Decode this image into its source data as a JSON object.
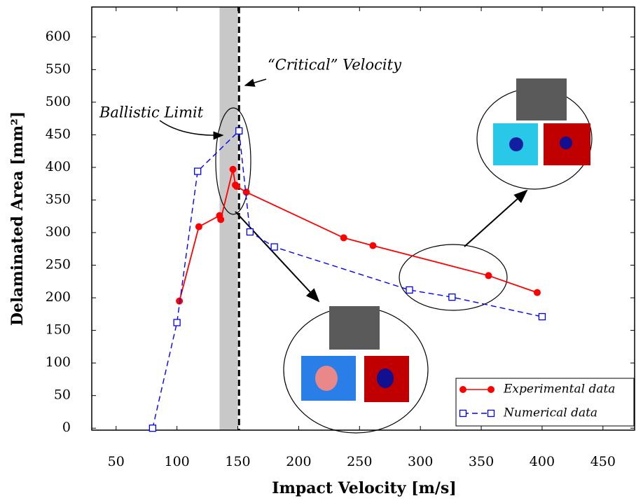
{
  "chart_data": {
    "type": "line",
    "xlabel": "Impact Velocity [m/s]",
    "ylabel": "Delaminated Area [mm²]",
    "xlim": [
      30,
      476
    ],
    "ylim": [
      -3,
      646
    ],
    "xticks": [
      50,
      100,
      150,
      200,
      250,
      300,
      350,
      400,
      450
    ],
    "yticks": [
      0,
      50,
      100,
      150,
      200,
      250,
      300,
      350,
      400,
      450,
      500,
      550,
      600
    ],
    "legend": "lower right",
    "band": [
      135,
      150
    ],
    "band_color": "#c8c8c8",
    "vline": 151,
    "annotations": [
      "Ballistic Limit",
      "“Critical” Velocity"
    ],
    "series": [
      {
        "name": "Experimental data",
        "color": "#ff0000",
        "style": "solid",
        "marker": "circle",
        "x": [
          102,
          118,
          135,
          136,
          146,
          148,
          149,
          157,
          237,
          261,
          356,
          396
        ],
        "values": [
          195,
          309,
          326,
          320,
          397,
          373,
          371,
          362,
          292,
          280,
          234,
          208
        ]
      },
      {
        "name": "Numerical data",
        "color": "#0000ff",
        "style": "dashed",
        "marker": "square",
        "x": [
          80,
          100,
          117,
          151,
          160,
          180,
          291,
          326,
          400
        ],
        "values": [
          0,
          162,
          394,
          456,
          301,
          278,
          212,
          201,
          171
        ]
      }
    ]
  }
}
